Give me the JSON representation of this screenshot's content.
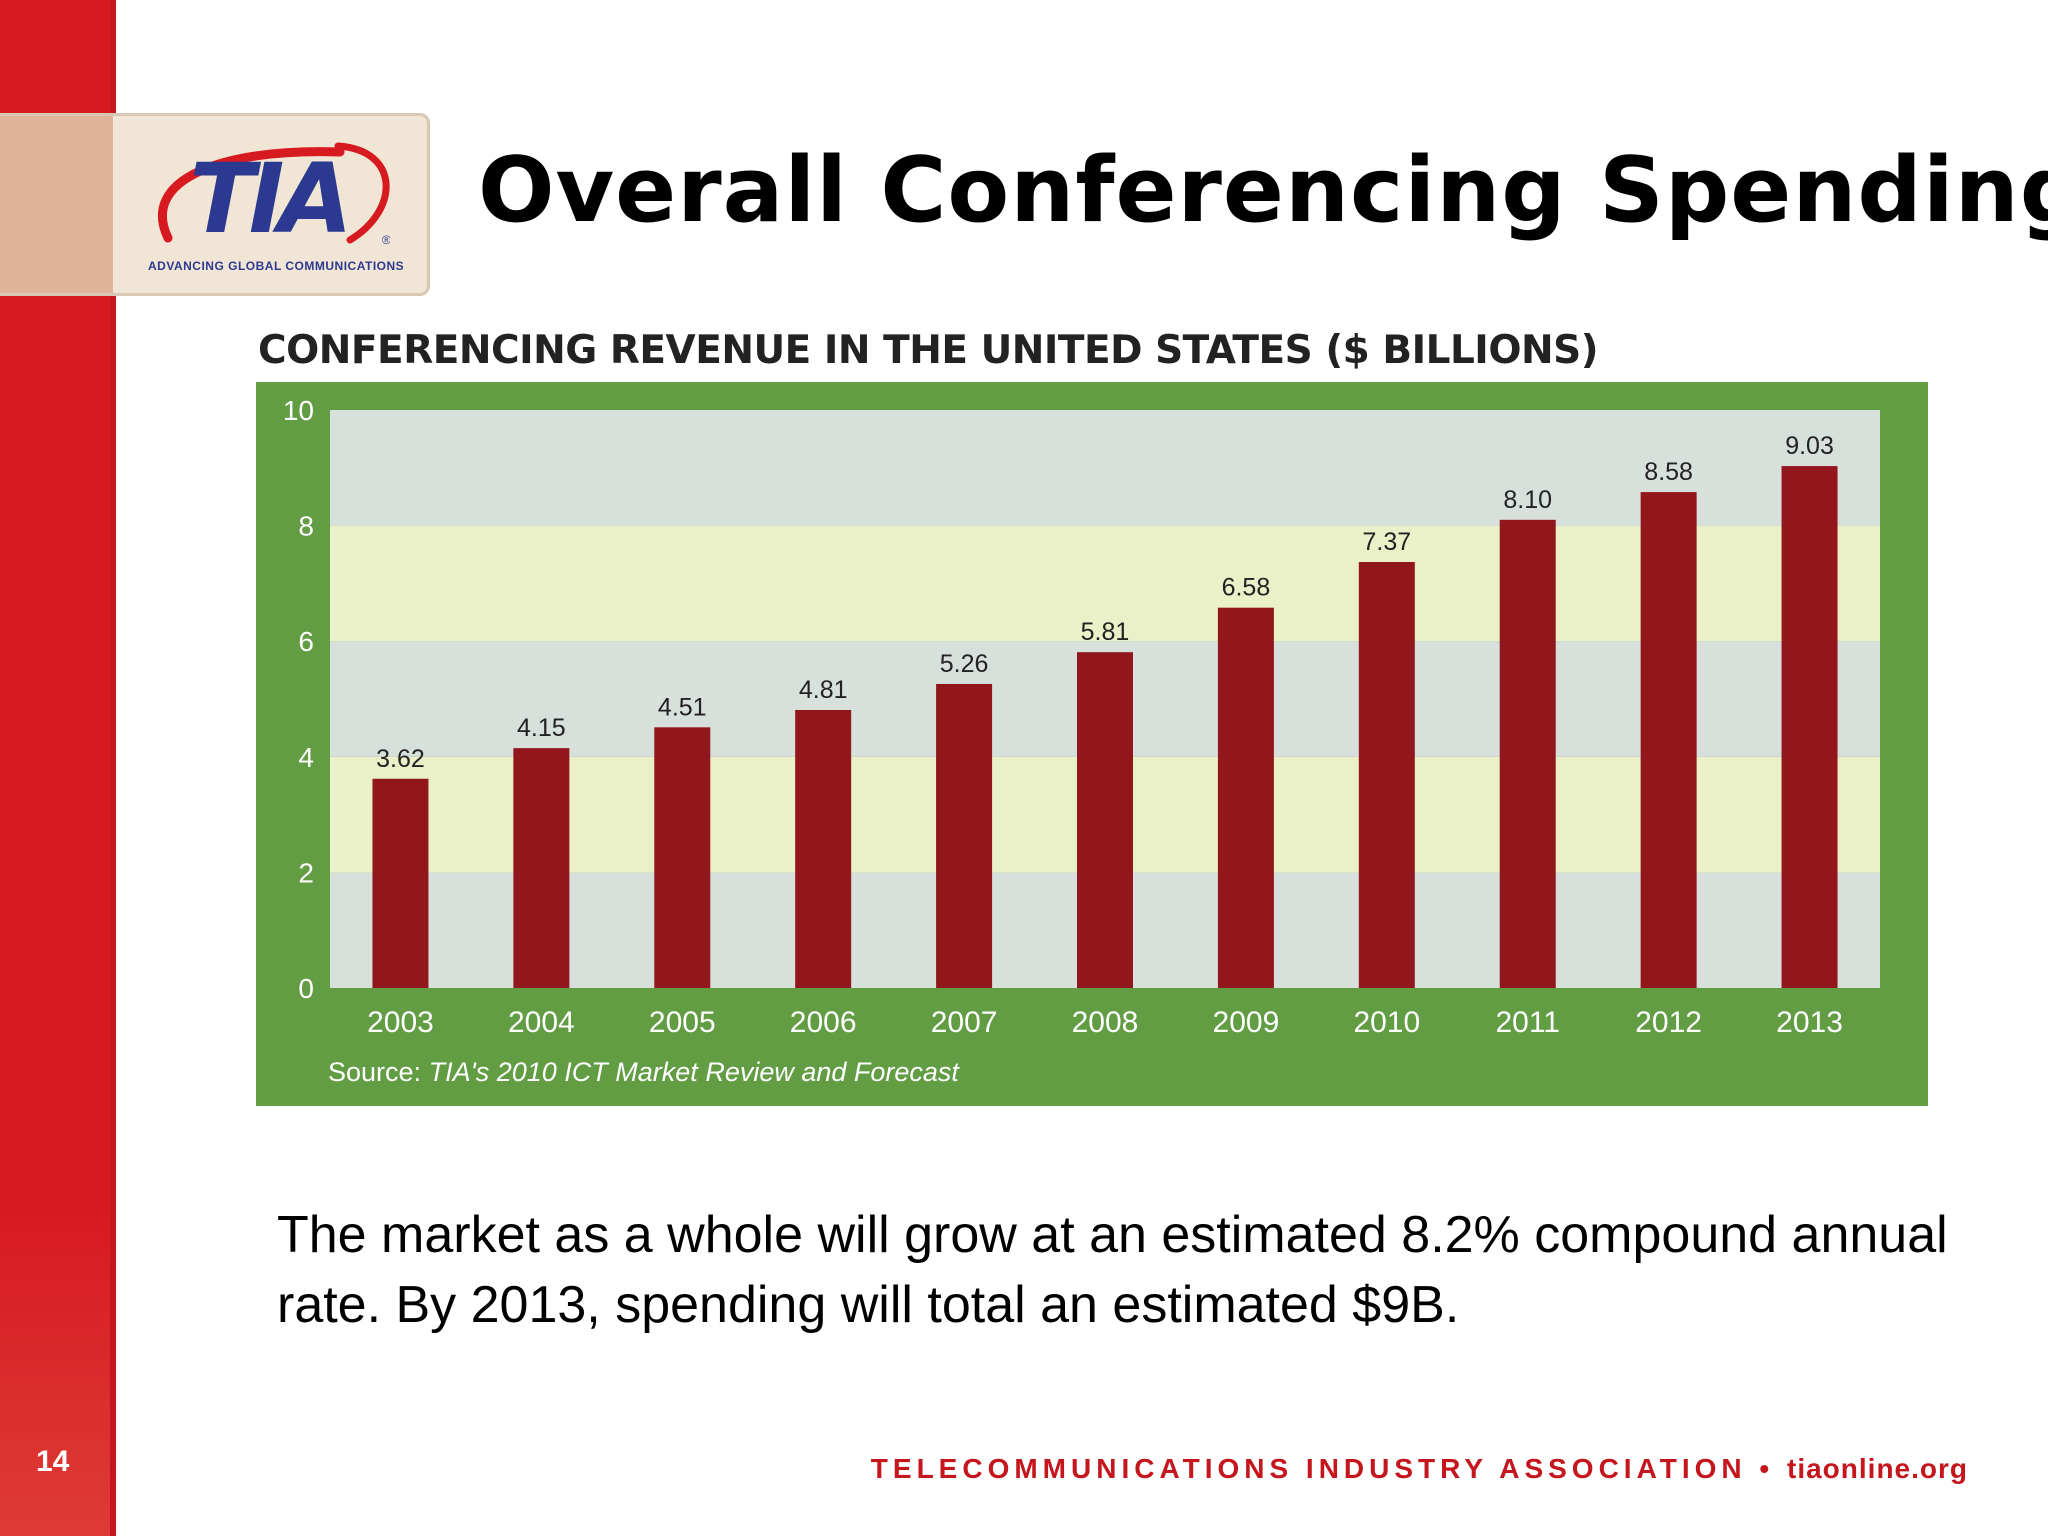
{
  "slide": {
    "title": "Overall Conferencing Spending",
    "page_number": "14",
    "body_text": "The market as a whole will grow at an estimated 8.2% compound annual rate. By 2013, spending will total an estimated $9B.",
    "footer_org": "TELECOMMUNICATIONS INDUSTRY ASSOCIATION",
    "footer_sep": "•",
    "footer_url": "tiaonline.org"
  },
  "logo": {
    "letters": "TIA",
    "registered": "®",
    "tagline": "ADVANCING GLOBAL COMMUNICATIONS"
  },
  "colors": {
    "brand_red": "#d71920",
    "chart_frame": "#629c43",
    "bar": "#92171c",
    "band_gray": "#d8e0dc",
    "band_yellow": "#eaf0c8",
    "logo_blue": "#2b3990"
  },
  "chart_data": {
    "type": "bar",
    "title": "CONFERENCING REVENUE IN THE UNITED STATES ($ BILLIONS)",
    "categories": [
      "2003",
      "2004",
      "2005",
      "2006",
      "2007",
      "2008",
      "2009",
      "2010",
      "2011",
      "2012",
      "2013"
    ],
    "values": [
      3.62,
      4.15,
      4.51,
      4.81,
      5.26,
      5.81,
      6.58,
      7.37,
      8.1,
      8.58,
      9.03
    ],
    "value_labels": [
      "3.62",
      "4.15",
      "4.51",
      "4.81",
      "5.26",
      "5.81",
      "6.58",
      "7.37",
      "8.10",
      "8.58",
      "9.03"
    ],
    "yticks": [
      "0",
      "2",
      "4",
      "6",
      "8",
      "10"
    ],
    "ylim": [
      0,
      10
    ],
    "xlabel": "",
    "ylabel": "",
    "grid": "alternating horizontal bands",
    "source_prefix": "Source:",
    "source_name": "TIA's 2010 ICT Market Review and Forecast"
  }
}
